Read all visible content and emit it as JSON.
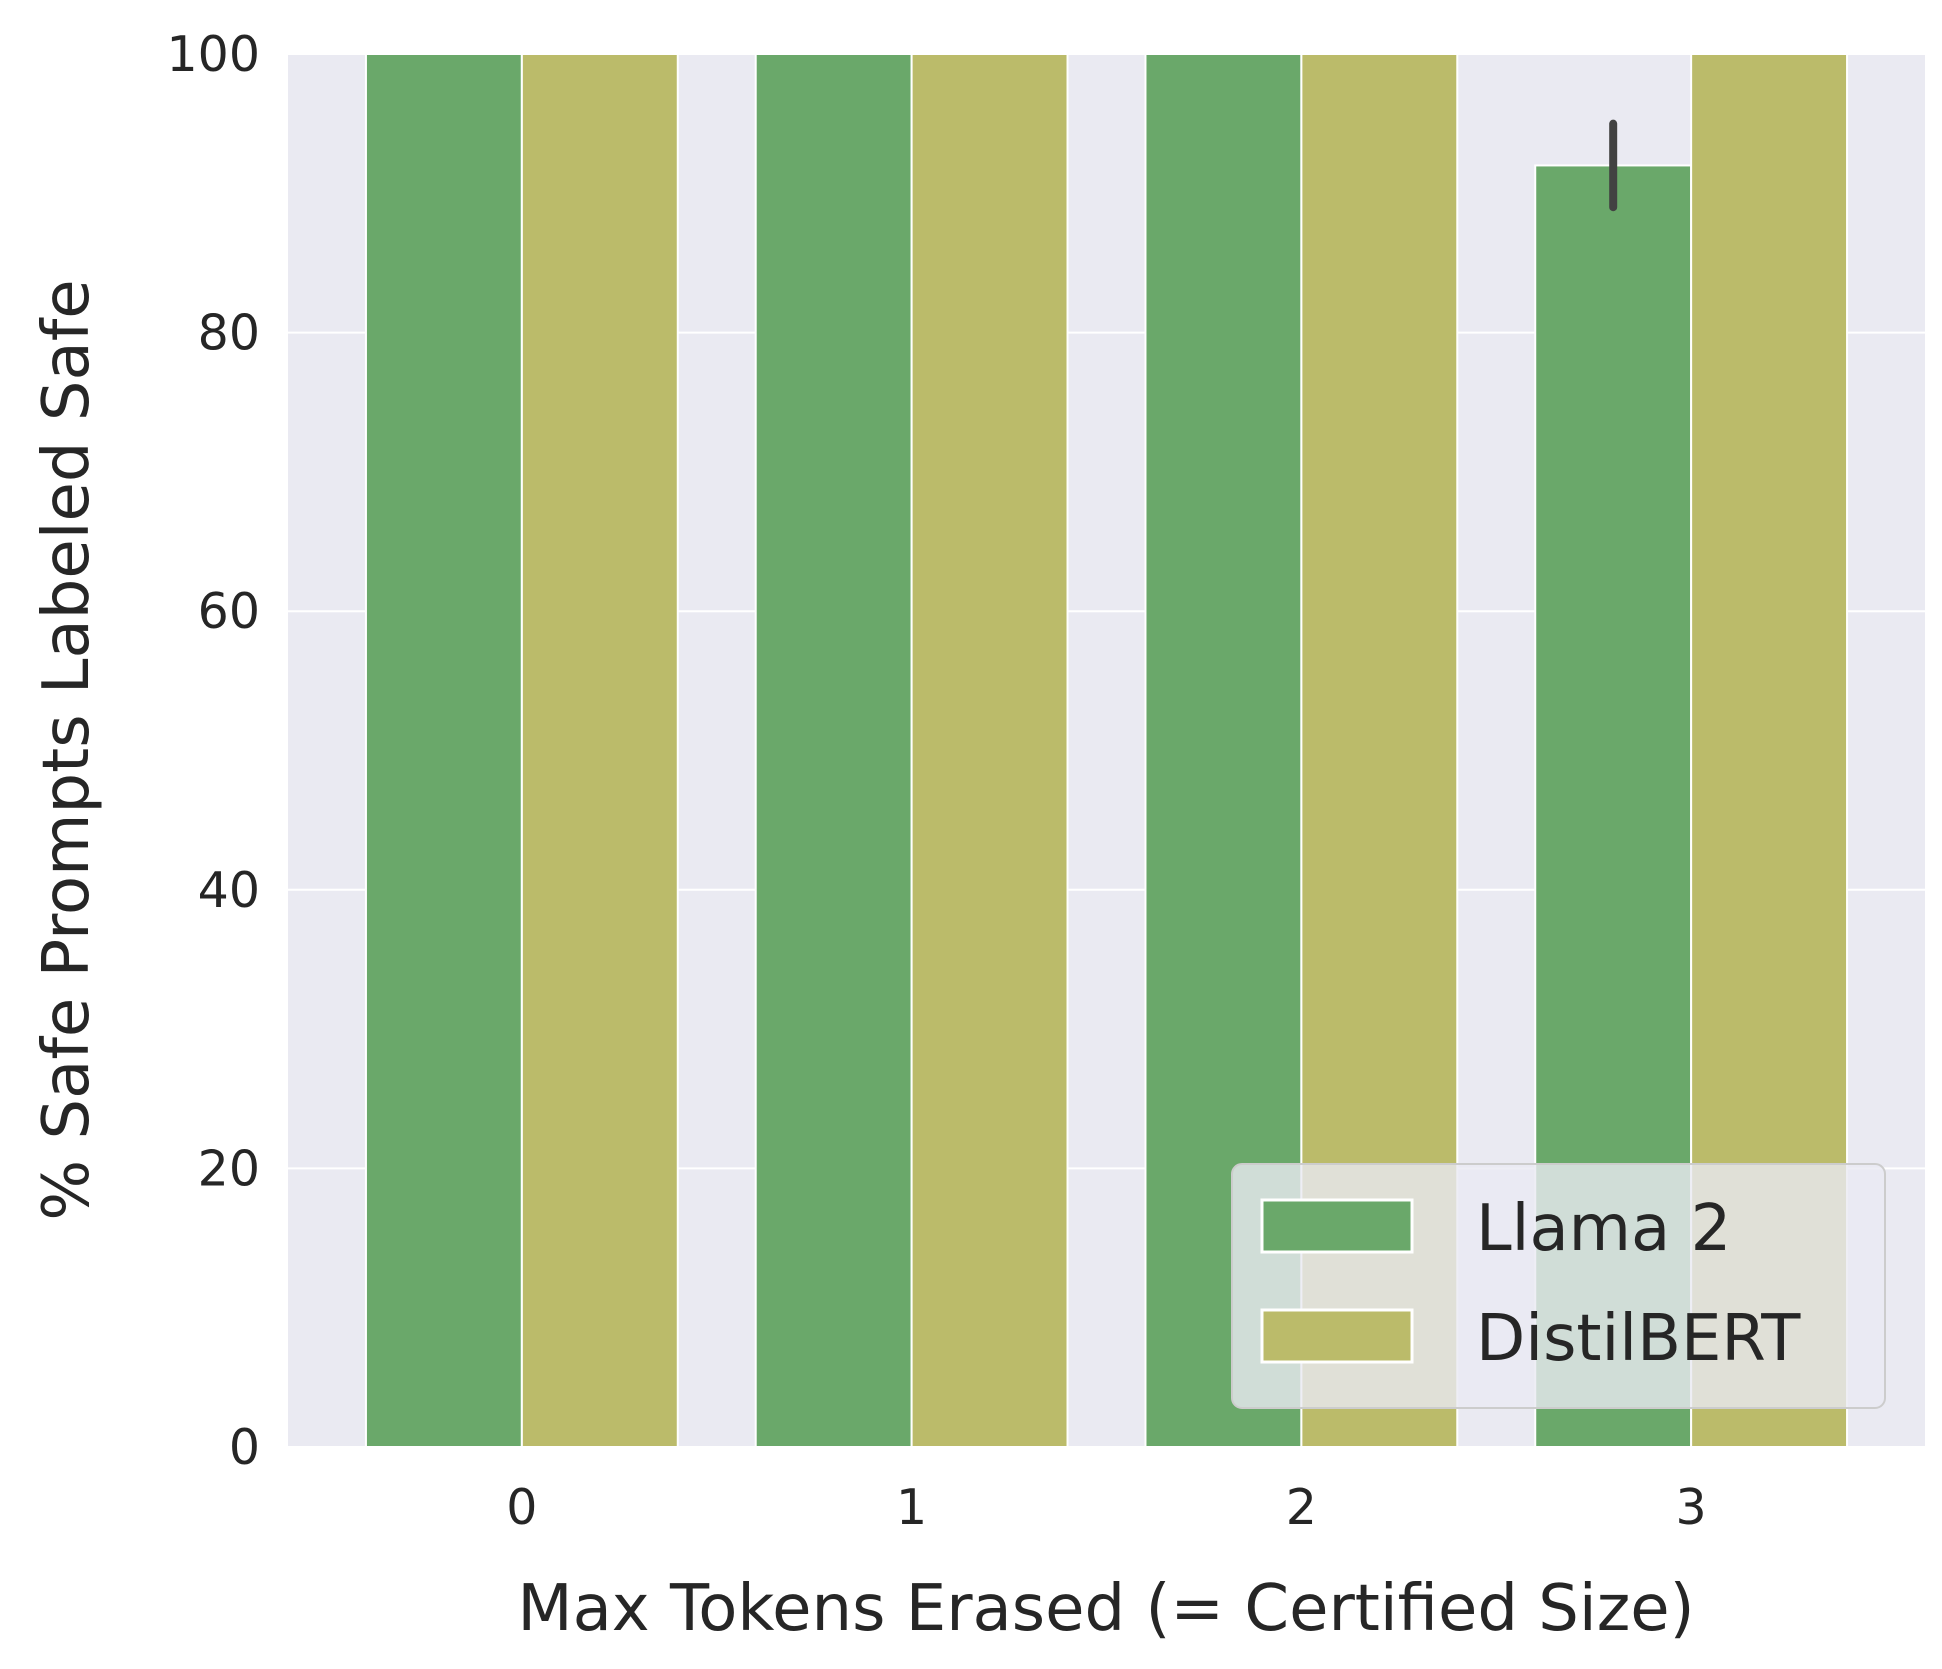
{
  "chart_data": {
    "type": "bar",
    "title": "",
    "xlabel": "Max Tokens Erased (= Certified Size)",
    "ylabel": "% Safe Prompts Labeled Safe",
    "categories": [
      "0",
      "1",
      "2",
      "3"
    ],
    "series": [
      {
        "name": "Llama 2",
        "color": "#6aa86a",
        "values": [
          100,
          100,
          100,
          92
        ],
        "error": [
          null,
          null,
          null,
          [
            89,
            95
          ]
        ]
      },
      {
        "name": "DistilBERT",
        "color": "#bbbb6a",
        "values": [
          100,
          100,
          100,
          100
        ],
        "error": [
          null,
          null,
          null,
          null
        ]
      }
    ],
    "ylim": [
      0,
      100
    ],
    "yticks": [
      0,
      20,
      40,
      60,
      80,
      100
    ],
    "grid": true,
    "background": "#eaeaf2",
    "legend_position": "lower-right"
  }
}
